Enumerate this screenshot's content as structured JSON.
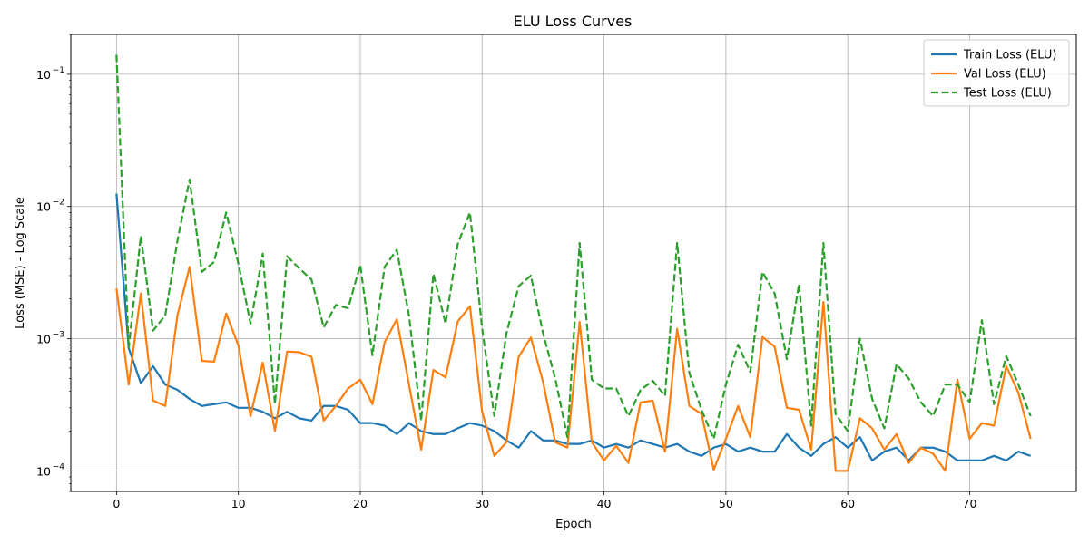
{
  "chart_data": {
    "type": "line",
    "title": "ELU Loss Curves",
    "xlabel": "Epoch",
    "ylabel": "Loss (MSE) - Log Scale",
    "xlim": [
      -3.75,
      78.75
    ],
    "ylim": [
      7e-05,
      0.2
    ],
    "yscale": "log",
    "grid": true,
    "legend_position": "top-right",
    "x_ticks": [
      0,
      10,
      20,
      30,
      40,
      50,
      60,
      70
    ],
    "y_ticks": [
      {
        "value": 0.0001,
        "base": "10",
        "exp": "−4"
      },
      {
        "value": 0.001,
        "base": "10",
        "exp": "−3"
      },
      {
        "value": 0.01,
        "base": "10",
        "exp": "−2"
      },
      {
        "value": 0.1,
        "base": "10",
        "exp": "−1"
      }
    ],
    "x": [
      0,
      1,
      2,
      3,
      4,
      5,
      6,
      7,
      8,
      9,
      10,
      11,
      12,
      13,
      14,
      15,
      16,
      17,
      18,
      19,
      20,
      21,
      22,
      23,
      24,
      25,
      26,
      27,
      28,
      29,
      30,
      31,
      32,
      33,
      34,
      35,
      36,
      37,
      38,
      39,
      40,
      41,
      42,
      43,
      44,
      45,
      46,
      47,
      48,
      49,
      50,
      51,
      52,
      53,
      54,
      55,
      56,
      57,
      58,
      59,
      60,
      61,
      62,
      63,
      64,
      65,
      66,
      67,
      68,
      69,
      70,
      71,
      72,
      73,
      74,
      75
    ],
    "series": [
      {
        "name": "Train Loss (ELU)",
        "color": "#1f77b4",
        "dash": "solid",
        "values": [
          0.0125,
          0.00085,
          0.00046,
          0.00062,
          0.00045,
          0.00041,
          0.00035,
          0.00031,
          0.00032,
          0.00033,
          0.0003,
          0.0003,
          0.00028,
          0.00025,
          0.00028,
          0.00025,
          0.00024,
          0.00031,
          0.00031,
          0.00029,
          0.00023,
          0.00023,
          0.00022,
          0.00019,
          0.00023,
          0.0002,
          0.00019,
          0.00019,
          0.00021,
          0.00023,
          0.00022,
          0.0002,
          0.00017,
          0.00015,
          0.0002,
          0.00017,
          0.00017,
          0.00016,
          0.00016,
          0.00017,
          0.00015,
          0.00016,
          0.00015,
          0.00017,
          0.00016,
          0.00015,
          0.00016,
          0.00014,
          0.00013,
          0.00015,
          0.00016,
          0.00014,
          0.00015,
          0.00014,
          0.00014,
          0.00019,
          0.00015,
          0.00013,
          0.00016,
          0.00018,
          0.00015,
          0.00018,
          0.00012,
          0.00014,
          0.00015,
          0.00012,
          0.00015,
          0.00015,
          0.00014,
          0.00012,
          0.00012,
          0.00012,
          0.00013,
          0.00012,
          0.00014,
          0.00013
        ]
      },
      {
        "name": "Val Loss (ELU)",
        "color": "#ff7f0e",
        "dash": "solid",
        "values": [
          0.0024,
          0.00045,
          0.0022,
          0.00034,
          0.00031,
          0.0015,
          0.0035,
          0.00068,
          0.00067,
          0.00155,
          0.00089,
          0.00026,
          0.00066,
          0.0002,
          0.0008,
          0.00079,
          0.00073,
          0.00024,
          0.00031,
          0.00042,
          0.00049,
          0.00032,
          0.00094,
          0.0014,
          0.00045,
          0.000145,
          0.00058,
          0.00051,
          0.00135,
          0.00176,
          0.00028,
          0.00013,
          0.000165,
          0.00073,
          0.00102,
          0.00047,
          0.000165,
          0.00015,
          0.00134,
          0.000165,
          0.00012,
          0.000155,
          0.000115,
          0.00033,
          0.00034,
          0.00014,
          0.00119,
          0.00031,
          0.00027,
          0.000102,
          0.000175,
          0.00031,
          0.00018,
          0.00103,
          0.00087,
          0.0003,
          0.00029,
          0.000145,
          0.0019,
          0.0001,
          0.0001,
          0.00025,
          0.00021,
          0.000145,
          0.00019,
          0.000115,
          0.00015,
          0.000135,
          0.0001,
          0.00049,
          0.000175,
          0.00023,
          0.00022,
          0.00062,
          0.00039,
          0.000175
        ]
      },
      {
        "name": "Test Loss (ELU)",
        "color": "#2ca02c",
        "dash": "dashed",
        "values": [
          0.14,
          0.00085,
          0.006,
          0.00115,
          0.0015,
          0.0055,
          0.016,
          0.0032,
          0.0038,
          0.009,
          0.0037,
          0.0013,
          0.0044,
          0.00032,
          0.0042,
          0.0034,
          0.0028,
          0.00122,
          0.0018,
          0.0017,
          0.0036,
          0.00075,
          0.0035,
          0.0047,
          0.0015,
          0.00024,
          0.0031,
          0.0013,
          0.0052,
          0.009,
          0.0012,
          0.00026,
          0.0011,
          0.0025,
          0.003,
          0.0011,
          0.0005,
          0.00018,
          0.0053,
          0.00049,
          0.00042,
          0.00042,
          0.00026,
          0.00041,
          0.00048,
          0.00037,
          0.0053,
          0.00055,
          0.00029,
          0.000175,
          0.00045,
          0.0009,
          0.00056,
          0.0032,
          0.0022,
          0.0007,
          0.0026,
          0.00022,
          0.0053,
          0.00027,
          0.0002,
          0.001,
          0.00035,
          0.00021,
          0.00064,
          0.0005,
          0.00033,
          0.00026,
          0.00045,
          0.00045,
          0.00033,
          0.00138,
          0.00032,
          0.00074,
          0.00045,
          0.00026
        ]
      }
    ]
  }
}
